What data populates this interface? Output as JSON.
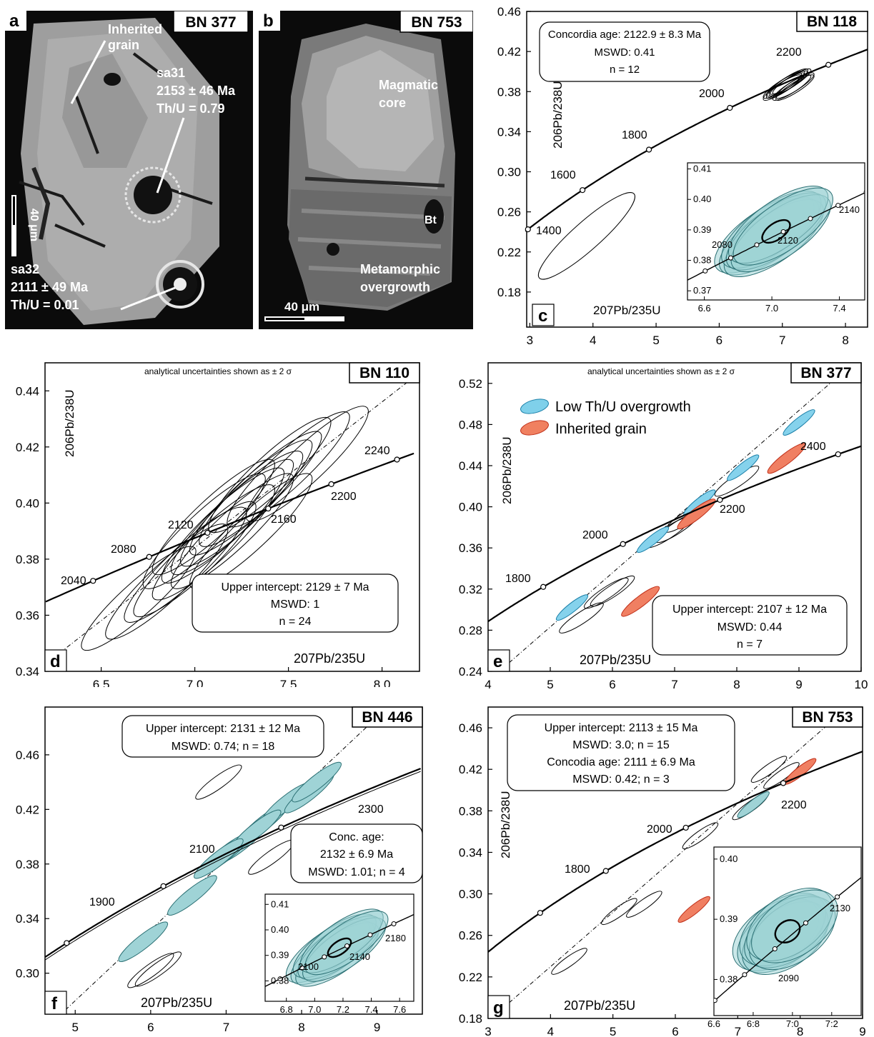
{
  "panels": {
    "a": {
      "letter": "a",
      "sample": "BN 377",
      "labels": {
        "inherited1": "Inherited",
        "inherited2": "grain",
        "sa31_name": "sa31",
        "sa31_age": "2153 ± 46 Ma",
        "sa31_thu": "Th/U = 0.79",
        "sa32_name": "sa32",
        "sa32_age": "2111 ± 49 Ma",
        "sa32_thu": "Th/U = 0.01",
        "scale": "40 μm"
      }
    },
    "b": {
      "letter": "b",
      "sample": "BN 753",
      "labels": {
        "core1": "Magmatic",
        "core2": "core",
        "bt": "Bt",
        "over1": "Metamorphic",
        "over2": "overgrowth",
        "scale": "40 μm"
      }
    }
  },
  "chart_data": [
    {
      "id": "c",
      "type": "scatter",
      "letter": "c",
      "sample": "BN 118",
      "note": "",
      "xlabel": "207Pb/235U",
      "ylabel": "206Pb/238U",
      "xlim": [
        2.95,
        8.35
      ],
      "ylim": [
        0.145,
        0.46
      ],
      "xticks": [
        3,
        4,
        5,
        6,
        7,
        8
      ],
      "yticks": [
        0.18,
        0.22,
        0.26,
        0.3,
        0.34,
        0.38,
        0.42,
        0.46
      ],
      "age_labels": [
        "1400",
        "1600",
        "1800",
        "2000",
        "2200"
      ],
      "box_lines": [
        "Concordia age: 2122.9 ± 8.3 Ma",
        "MSWD: 0.41",
        "n = 12"
      ],
      "inset": {
        "xlim": [
          6.5,
          7.55
        ],
        "ylim": [
          0.367,
          0.412
        ],
        "xticks": [
          6.6,
          7.0,
          7.4
        ],
        "yticks": [
          0.37,
          0.38,
          0.39,
          0.4,
          0.41
        ],
        "age_labels": [
          "2080",
          "2120",
          "2140"
        ]
      }
    },
    {
      "id": "d",
      "type": "scatter",
      "letter": "d",
      "sample": "BN 110",
      "note": "analytical uncertainties shown as ± 2 σ",
      "xlabel": "207Pb/235U",
      "ylabel": "206Pb/238U",
      "xlim": [
        6.2,
        8.2
      ],
      "ylim": [
        0.34,
        0.45
      ],
      "xticks": [
        6.5,
        7.0,
        7.5,
        8.0
      ],
      "yticks": [
        0.34,
        0.36,
        0.38,
        0.4,
        0.42,
        0.44
      ],
      "age_labels": [
        "2040",
        "2080",
        "2120",
        "2160",
        "2200",
        "2240"
      ],
      "box_lines": [
        "Upper intercept: 2129 ± 7 Ma",
        "MSWD: 1",
        "n = 24"
      ]
    },
    {
      "id": "e",
      "type": "scatter",
      "letter": "e",
      "sample": "BN 377",
      "note": "analytical uncertainties shown as ± 2 σ",
      "xlabel": "207Pb/235U",
      "ylabel": "206Pb/238U",
      "xlim": [
        4,
        10
      ],
      "ylim": [
        0.24,
        0.54
      ],
      "xticks": [
        4,
        5,
        6,
        7,
        8,
        9,
        10
      ],
      "yticks": [
        0.24,
        0.28,
        0.32,
        0.36,
        0.4,
        0.44,
        0.48,
        0.52
      ],
      "age_labels": [
        "1800",
        "2000",
        "2200",
        "2400"
      ],
      "legend": [
        "Low Th/U overgrowth",
        "Inherited grain"
      ],
      "box_lines": [
        "Upper intercept: 2107 ± 12 Ma",
        "MSWD: 0.44",
        "n = 7"
      ]
    },
    {
      "id": "f",
      "type": "scatter",
      "letter": "f",
      "sample": "BN 446",
      "note": "",
      "xlabel": "207Pb/235U",
      "ylabel": "",
      "xlim": [
        4.6,
        9.6
      ],
      "ylim": [
        0.27,
        0.495
      ],
      "xticks": [
        5,
        6,
        7,
        8,
        9
      ],
      "yticks": [
        0.3,
        0.34,
        0.38,
        0.42,
        0.46
      ],
      "age_labels": [
        "1900",
        "2100",
        "2300"
      ],
      "box_lines": [
        "Upper intercept: 2131 ± 12 Ma",
        "MSWD: 0.74; n = 18"
      ],
      "box2_lines": [
        "Conc. age:",
        "2132 ± 6.9 Ma",
        "MSWD: 1.01; n = 4"
      ],
      "inset": {
        "xlim": [
          6.65,
          7.7
        ],
        "ylim": [
          0.372,
          0.414
        ],
        "xticks": [
          6.8,
          7.0,
          7.2,
          7.4,
          7.6
        ],
        "yticks": [
          0.38,
          0.39,
          0.4,
          0.41
        ],
        "age_labels": [
          "2100",
          "2140",
          "2180"
        ]
      }
    },
    {
      "id": "g",
      "type": "scatter",
      "letter": "g",
      "sample": "BN 753",
      "note": "",
      "xlabel": "207Pb/235U",
      "ylabel": "206Pb/238U",
      "xlim": [
        3,
        9
      ],
      "ylim": [
        0.18,
        0.48
      ],
      "xticks": [
        3,
        4,
        5,
        6,
        7,
        8,
        9
      ],
      "yticks": [
        0.18,
        0.22,
        0.26,
        0.3,
        0.34,
        0.38,
        0.42,
        0.46
      ],
      "age_labels": [
        "1800",
        "2000",
        "2200"
      ],
      "box_lines": [
        "Upper intercept: 2113 ± 15 Ma",
        "MSWD: 3.0; n = 15",
        "Concodia age: 2111 ± 6.9 Ma",
        "MSWD: 0.42; n = 3"
      ],
      "inset": {
        "xlim": [
          6.6,
          7.35
        ],
        "ylim": [
          0.374,
          0.402
        ],
        "xticks": [
          6.6,
          6.8,
          7.0,
          7.2
        ],
        "xtick_labels": [
          "6.6",
          "6:8",
          "7:0",
          "7:2"
        ],
        "yticks": [
          0.38,
          0.39,
          0.4
        ],
        "age_labels": [
          "2090",
          "2130"
        ]
      }
    }
  ]
}
